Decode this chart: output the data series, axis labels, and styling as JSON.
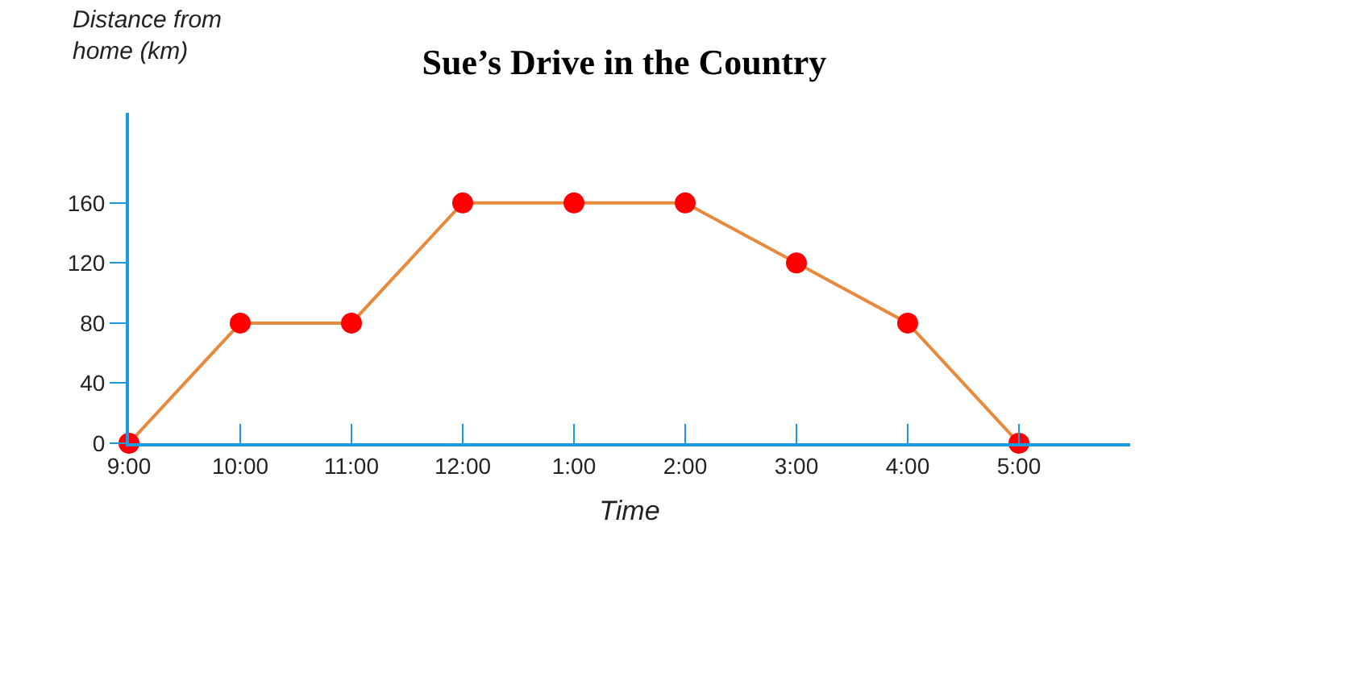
{
  "chart_data": {
    "type": "line",
    "title": "Sue’s Drive in the Country",
    "xlabel": "Time",
    "ylabel": "Distance from home (km)",
    "categories": [
      "9:00",
      "10:00",
      "11:00",
      "12:00",
      "1:00",
      "2:00",
      "3:00",
      "4:00",
      "5:00"
    ],
    "series": [
      {
        "color": "#e8893c",
        "colors": [
          "#ff0000",
          "#ff0000",
          "#ff0000",
          "#ff0000",
          "#ff0000",
          "#ff0000",
          "#ff0000",
          "#ff0000",
          "#ff0000"
        ],
        "values": [
          0,
          80,
          80,
          160,
          160,
          160,
          120,
          80,
          0
        ]
      }
    ],
    "ylim": [
      0,
      220
    ],
    "yticks": [
      0,
      40,
      80,
      120,
      160
    ],
    "marker": "circle",
    "line_style": "solid"
  }
}
